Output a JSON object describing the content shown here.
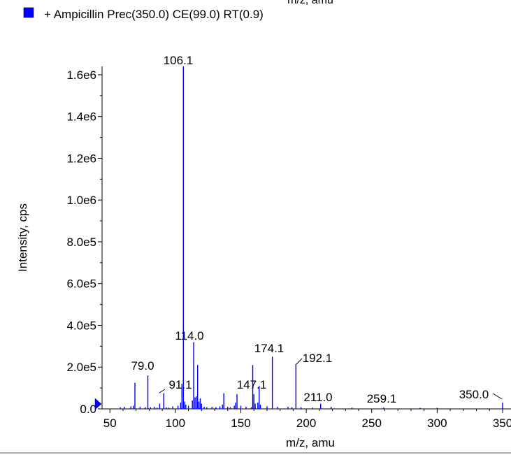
{
  "header": {
    "clipped_label": "m/z, amu",
    "legend_label": "+ Ampicillin Prec(350.0) CE(99.0) RT(0.9)",
    "legend_color": "#0000ff"
  },
  "chart_data": {
    "type": "bar",
    "title": "",
    "xlabel": "m/z, amu",
    "ylabel": "Intensity, cps",
    "xlim": [
      44,
      352
    ],
    "ylim": [
      0,
      1700000
    ],
    "x_ticks": [
      50,
      100,
      150,
      200,
      250,
      300,
      350
    ],
    "x_tick_labels": [
      "50",
      "100",
      "150",
      "200",
      "250",
      "300",
      "350"
    ],
    "y_ticks": [
      0,
      200000,
      400000,
      600000,
      800000,
      1000000,
      1200000,
      1400000,
      1600000
    ],
    "y_tick_labels": [
      "0.0",
      "2.0e5",
      "4.0e5",
      "6.0e5",
      "8.0e5",
      "1.0e6",
      "1.2e6",
      "1.4e6",
      "1.6e6"
    ],
    "grid": false,
    "legend": "top-left",
    "series": [
      {
        "name": "+ Ampicillin Prec(350.0) CE(99.0) RT(0.9)",
        "color": "#0000ff",
        "x": [
          58,
          61,
          66,
          68,
          69.1,
          73,
          77,
          79.0,
          81,
          84,
          86,
          88,
          91.1,
          93,
          95,
          98,
          102,
          104,
          105,
          106.1,
          107,
          108,
          110,
          113,
          114.0,
          115,
          116,
          117,
          118,
          119,
          120,
          122,
          124,
          128,
          131,
          134,
          136,
          137,
          140,
          142,
          145,
          146,
          147.1,
          150,
          154,
          158,
          159.1,
          160,
          161,
          163,
          164,
          165,
          170,
          174.1,
          178,
          186,
          189,
          192.1,
          196,
          205,
          211.0,
          219,
          235,
          259.1,
          287,
          300,
          350.0
        ],
        "y": [
          8000,
          10000,
          12000,
          15000,
          125000,
          10000,
          8000,
          160000,
          8000,
          10000,
          6000,
          25000,
          75000,
          8000,
          6000,
          12000,
          15000,
          30000,
          120000,
          1640000,
          35000,
          20000,
          15000,
          40000,
          320000,
          55000,
          60000,
          210000,
          35000,
          50000,
          25000,
          10000,
          8000,
          10000,
          8000,
          12000,
          20000,
          75000,
          10000,
          8000,
          15000,
          30000,
          70000,
          15000,
          10000,
          8000,
          210000,
          70000,
          25000,
          30000,
          110000,
          20000,
          12000,
          250000,
          10000,
          10000,
          8000,
          215000,
          8000,
          6000,
          25000,
          10000,
          6000,
          6000,
          5000,
          5000,
          30000
        ]
      }
    ],
    "annotations": [
      {
        "text": "106.1",
        "x": 106.1
      },
      {
        "text": "114.0",
        "x": 114.0
      },
      {
        "text": "79.0",
        "x": 79.0
      },
      {
        "text": "91.1",
        "x": 91.1
      },
      {
        "text": "147.1",
        "x": 147.1
      },
      {
        "text": "174.1",
        "x": 174.1
      },
      {
        "text": "192.1",
        "x": 192.1
      },
      {
        "text": "211.0",
        "x": 211.0
      },
      {
        "text": "259.1",
        "x": 259.1
      },
      {
        "text": "350.0",
        "x": 350.0
      }
    ]
  }
}
